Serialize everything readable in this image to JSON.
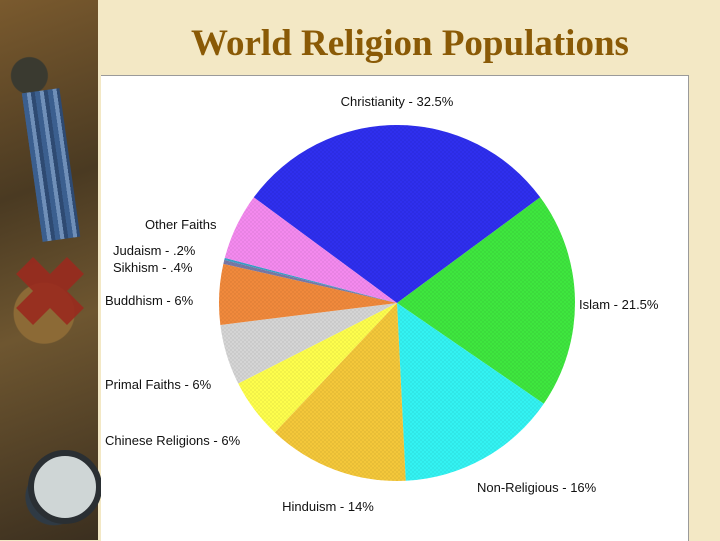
{
  "slide": {
    "title": "World Religion Populations"
  },
  "decor": {
    "side_photo": "medals-and-compass-photo"
  },
  "chart_data": {
    "type": "pie",
    "title": "",
    "slices": [
      {
        "label": "Christianity - 32.5%",
        "value": 32.5,
        "color": "#2f2ff0"
      },
      {
        "label": "Islam - 21.5%",
        "value": 21.5,
        "color": "#3fe73f"
      },
      {
        "label": "Non-Religious - 16%",
        "value": 16,
        "color": "#33f4f4"
      },
      {
        "label": "Hinduism - 14%",
        "value": 14,
        "color": "#f5c83a"
      },
      {
        "label": "Chinese Religions - 6%",
        "value": 6,
        "color": "#ffff4d"
      },
      {
        "label": "Primal Faiths - 6%",
        "value": 6,
        "color": "#d6d6d6"
      },
      {
        "label": "Buddhism - 6%",
        "value": 6,
        "color": "#f28a3c"
      },
      {
        "label": "Sikhism - .4%",
        "value": 0.4,
        "color": "#7a7aa8"
      },
      {
        "label": "Judaism - .2%",
        "value": 0.2,
        "color": "#3aa0c8"
      },
      {
        "label": "Other Faiths",
        "value": 6.6,
        "color": "#f58af0"
      }
    ]
  }
}
